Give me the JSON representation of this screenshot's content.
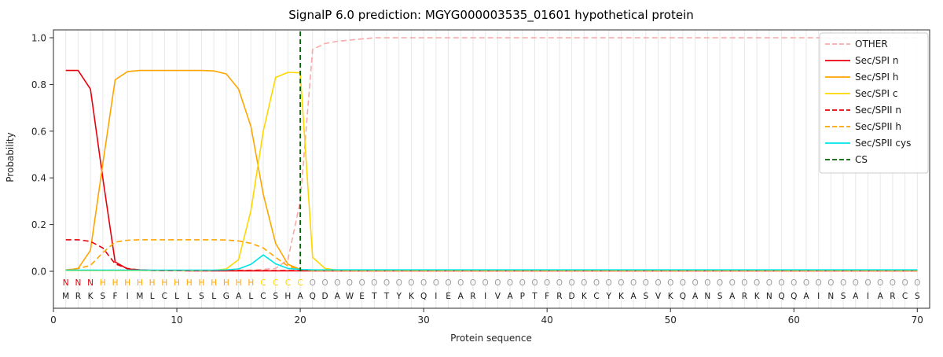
{
  "chart_data": {
    "type": "line",
    "title": "SignalP 6.0 prediction: MGYG000003535_01601 hypothetical protein",
    "xlabel": "Protein sequence",
    "ylabel": "Probability",
    "xlim": [
      0,
      71
    ],
    "ylim": [
      0.0,
      1.0
    ],
    "x_ticks": [
      0,
      10,
      20,
      30,
      40,
      50,
      60,
      70
    ],
    "y_ticks": [
      0.0,
      0.2,
      0.4,
      0.6,
      0.8,
      1.0
    ],
    "grid": "vertical-per-residue",
    "legend_position": "upper-right",
    "cs_position": 20,
    "cs_color": "#006400",
    "sequence": "MRKSFIMLCLLSLGALCSHAQDAWETTYKQIEARIVAPTFRDKCYKASVKQANSARKNQQAINSAIARCS",
    "region_labels": "NNNHHHHHHHHHHHHHCCCCOOOOOOOOOOOOOOOOOOOOOOOOOOOOOOOOOOOOOOOOOOOOOOOOOO",
    "region_colors": {
      "N": "#e8000b",
      "H": "#ffa500",
      "C": "#ffd700",
      "O": "#9e9e9e"
    },
    "series": [
      {
        "id": "other",
        "name": "OTHER",
        "color": "#f9a7a7",
        "dash": true,
        "values": [
          0.005,
          0.005,
          0.005,
          0.005,
          0.005,
          0.005,
          0.005,
          0.005,
          0.005,
          0.005,
          0.005,
          0.005,
          0.005,
          0.005,
          0.005,
          0.005,
          0.008,
          0.012,
          0.05,
          0.3,
          0.95,
          0.975,
          0.985,
          0.99,
          0.995,
          1.0,
          1.0,
          1.0,
          1.0,
          1.0,
          1.0,
          1.0,
          1.0,
          1.0,
          1.0,
          1.0,
          1.0,
          1.0,
          1.0,
          1.0,
          1.0,
          1.0,
          1.0,
          1.0,
          1.0,
          1.0,
          1.0,
          1.0,
          1.0,
          1.0,
          1.0,
          1.0,
          1.0,
          1.0,
          1.0,
          1.0,
          1.0,
          1.0,
          1.0,
          1.0,
          1.0,
          1.0,
          1.0,
          1.0,
          1.0,
          1.0,
          1.0,
          1.0,
          1.0,
          1.0
        ]
      },
      {
        "id": "sec-spi-n",
        "name": "Sec/SPI n",
        "color": "#e8000b",
        "dash": false,
        "values": [
          0.86,
          0.86,
          0.78,
          0.4,
          0.04,
          0.01,
          0.006,
          0.004,
          0.003,
          0.003,
          0.002,
          0.002,
          0.002,
          0.002,
          0.002,
          0.002,
          0.002,
          0.002,
          0.002,
          0.002,
          0.002,
          0.002,
          0.002,
          0.002,
          0.002,
          0.002,
          0.002,
          0.002,
          0.002,
          0.002,
          0.002,
          0.002,
          0.002,
          0.002,
          0.002,
          0.002,
          0.002,
          0.002,
          0.002,
          0.002,
          0.002,
          0.002,
          0.002,
          0.002,
          0.002,
          0.002,
          0.002,
          0.002,
          0.002,
          0.002,
          0.002,
          0.002,
          0.002,
          0.002,
          0.002,
          0.002,
          0.002,
          0.002,
          0.002,
          0.002,
          0.002,
          0.002,
          0.002,
          0.002,
          0.002,
          0.002,
          0.002,
          0.002,
          0.002,
          0.002
        ]
      },
      {
        "id": "sec-spi-h",
        "name": "Sec/SPI h",
        "color": "#ffa500",
        "dash": false,
        "values": [
          0.004,
          0.012,
          0.09,
          0.46,
          0.82,
          0.855,
          0.86,
          0.86,
          0.86,
          0.86,
          0.86,
          0.86,
          0.858,
          0.845,
          0.78,
          0.62,
          0.33,
          0.12,
          0.03,
          0.008,
          0.003,
          0.003,
          0.003,
          0.003,
          0.003,
          0.003,
          0.003,
          0.003,
          0.003,
          0.003,
          0.003,
          0.003,
          0.003,
          0.003,
          0.003,
          0.003,
          0.003,
          0.003,
          0.003,
          0.003,
          0.003,
          0.003,
          0.003,
          0.003,
          0.003,
          0.003,
          0.003,
          0.003,
          0.003,
          0.003,
          0.003,
          0.003,
          0.003,
          0.003,
          0.003,
          0.003,
          0.003,
          0.003,
          0.003,
          0.003,
          0.003,
          0.003,
          0.003,
          0.003,
          0.003,
          0.003,
          0.003,
          0.003,
          0.003,
          0.003
        ]
      },
      {
        "id": "sec-spi-c",
        "name": "Sec/SPI c",
        "color": "#ffd700",
        "dash": false,
        "values": [
          0.003,
          0.003,
          0.003,
          0.003,
          0.003,
          0.003,
          0.003,
          0.003,
          0.003,
          0.003,
          0.003,
          0.003,
          0.004,
          0.01,
          0.05,
          0.26,
          0.6,
          0.83,
          0.852,
          0.85,
          0.06,
          0.012,
          0.005,
          0.003,
          0.003,
          0.003,
          0.003,
          0.003,
          0.003,
          0.003,
          0.003,
          0.003,
          0.003,
          0.003,
          0.003,
          0.003,
          0.003,
          0.003,
          0.003,
          0.003,
          0.003,
          0.003,
          0.003,
          0.003,
          0.003,
          0.003,
          0.003,
          0.003,
          0.003,
          0.003,
          0.003,
          0.003,
          0.003,
          0.003,
          0.003,
          0.003,
          0.003,
          0.003,
          0.003,
          0.003,
          0.003,
          0.003,
          0.003,
          0.003,
          0.003,
          0.003,
          0.003,
          0.003,
          0.003,
          0.003
        ]
      },
      {
        "id": "sec-spii-n",
        "name": "Sec/SPII n",
        "color": "#e8000b",
        "dash": true,
        "values": [
          0.135,
          0.135,
          0.128,
          0.1,
          0.032,
          0.012,
          0.006,
          0.004,
          0.003,
          0.003,
          0.003,
          0.003,
          0.003,
          0.003,
          0.003,
          0.003,
          0.003,
          0.003,
          0.003,
          0.003,
          0.003,
          0.003,
          0.003,
          0.003,
          0.003,
          0.003,
          0.003,
          0.003,
          0.003,
          0.003,
          0.003,
          0.003,
          0.003,
          0.003,
          0.003,
          0.003,
          0.003,
          0.003,
          0.003,
          0.003,
          0.003,
          0.003,
          0.003,
          0.003,
          0.003,
          0.003,
          0.003,
          0.003,
          0.003,
          0.003,
          0.003,
          0.003,
          0.003,
          0.003,
          0.003,
          0.003,
          0.003,
          0.003,
          0.003,
          0.003,
          0.003,
          0.003,
          0.003,
          0.003,
          0.003,
          0.003,
          0.003,
          0.003,
          0.003,
          0.003
        ]
      },
      {
        "id": "sec-spii-h",
        "name": "Sec/SPII h",
        "color": "#ffa500",
        "dash": true,
        "values": [
          0.006,
          0.012,
          0.025,
          0.08,
          0.125,
          0.133,
          0.135,
          0.135,
          0.135,
          0.135,
          0.135,
          0.135,
          0.135,
          0.134,
          0.13,
          0.12,
          0.1,
          0.06,
          0.022,
          0.008,
          0.003,
          0.003,
          0.003,
          0.003,
          0.003,
          0.003,
          0.003,
          0.003,
          0.003,
          0.003,
          0.003,
          0.003,
          0.003,
          0.003,
          0.003,
          0.003,
          0.003,
          0.003,
          0.003,
          0.003,
          0.003,
          0.003,
          0.003,
          0.003,
          0.003,
          0.003,
          0.003,
          0.003,
          0.003,
          0.003,
          0.003,
          0.003,
          0.003,
          0.003,
          0.003,
          0.003,
          0.003,
          0.003,
          0.003,
          0.003,
          0.003,
          0.003,
          0.003,
          0.003,
          0.003,
          0.003,
          0.003,
          0.003,
          0.003,
          0.003
        ]
      },
      {
        "id": "sec-spii-cys",
        "name": "Sec/SPII cys",
        "color": "#00e5e5",
        "dash": false,
        "values": [
          0.005,
          0.005,
          0.005,
          0.005,
          0.005,
          0.005,
          0.005,
          0.005,
          0.005,
          0.005,
          0.005,
          0.005,
          0.005,
          0.006,
          0.01,
          0.03,
          0.07,
          0.032,
          0.012,
          0.008,
          0.006,
          0.006,
          0.006,
          0.006,
          0.006,
          0.006,
          0.006,
          0.006,
          0.006,
          0.006,
          0.006,
          0.006,
          0.006,
          0.006,
          0.006,
          0.006,
          0.006,
          0.006,
          0.006,
          0.006,
          0.006,
          0.006,
          0.006,
          0.006,
          0.006,
          0.006,
          0.006,
          0.006,
          0.006,
          0.006,
          0.006,
          0.006,
          0.006,
          0.006,
          0.006,
          0.006,
          0.006,
          0.006,
          0.006,
          0.006,
          0.006,
          0.006,
          0.006,
          0.006,
          0.006,
          0.006,
          0.006,
          0.006,
          0.006,
          0.006
        ]
      }
    ]
  },
  "legend": {
    "items": [
      {
        "id": "other",
        "label": "OTHER",
        "color": "#f9a7a7",
        "dash": true
      },
      {
        "id": "sec-spi-n",
        "label": "Sec/SPI n",
        "color": "#e8000b",
        "dash": false
      },
      {
        "id": "sec-spi-h",
        "label": "Sec/SPI h",
        "color": "#ffa500",
        "dash": false
      },
      {
        "id": "sec-spi-c",
        "label": "Sec/SPI c",
        "color": "#ffd700",
        "dash": false
      },
      {
        "id": "sec-spii-n",
        "label": "Sec/SPII n",
        "color": "#e8000b",
        "dash": true
      },
      {
        "id": "sec-spii-h",
        "label": "Sec/SPII h",
        "color": "#ffa500",
        "dash": true
      },
      {
        "id": "sec-spii-cys",
        "label": "Sec/SPII cys",
        "color": "#00e5e5",
        "dash": false
      },
      {
        "id": "cs",
        "label": "CS",
        "color": "#006400",
        "dash": true
      }
    ]
  }
}
